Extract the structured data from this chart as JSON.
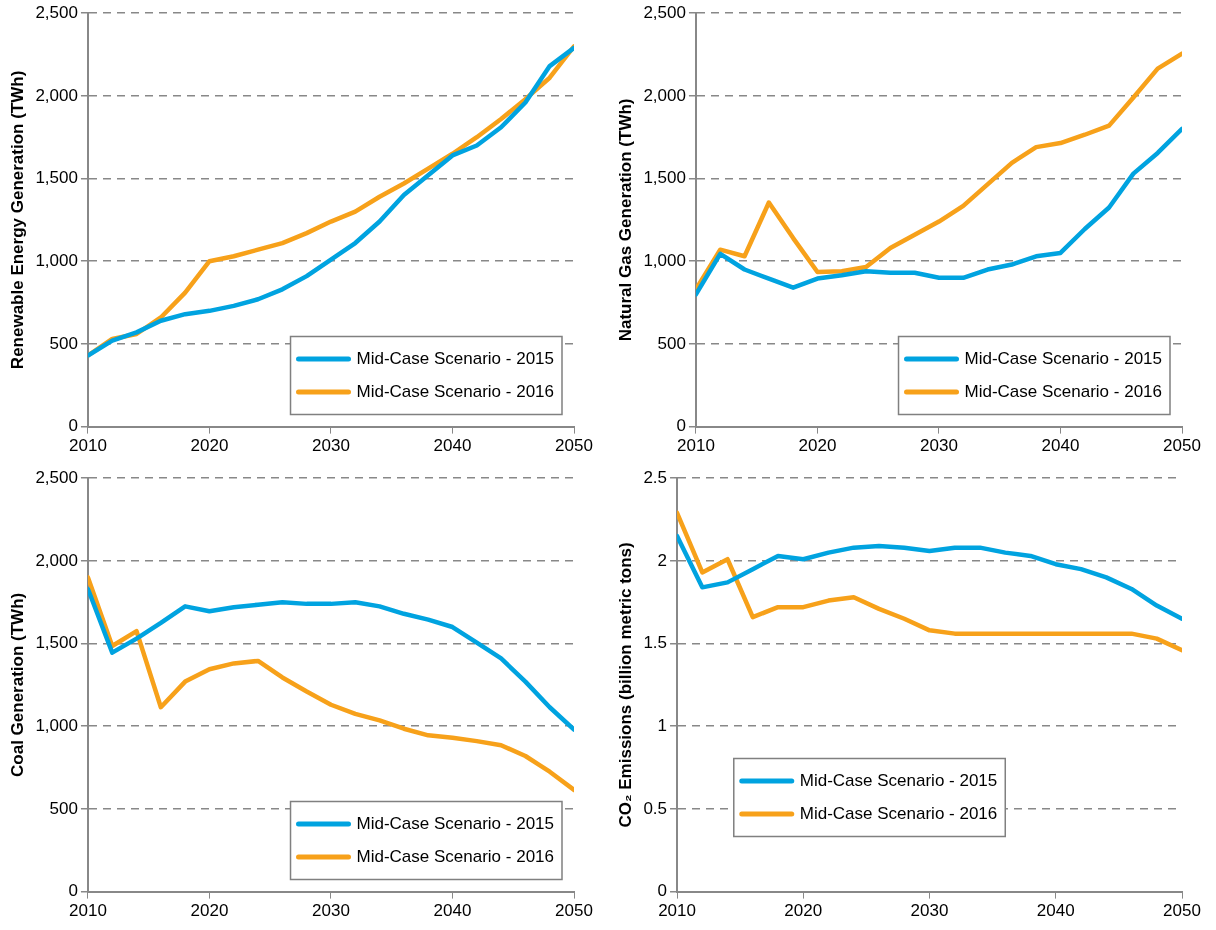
{
  "chart_data": [
    {
      "type": "line",
      "ylabel": "Renewable Energy Generation (TWh)",
      "x": [
        2010,
        2012,
        2014,
        2016,
        2018,
        2020,
        2022,
        2024,
        2026,
        2028,
        2030,
        2032,
        2034,
        2036,
        2038,
        2040,
        2042,
        2044,
        2046,
        2048,
        2050
      ],
      "xlim": [
        2010,
        2050
      ],
      "xticks": [
        2010,
        2020,
        2030,
        2040,
        2050
      ],
      "ylim": [
        0,
        2500
      ],
      "yticks": [
        0,
        500,
        {
          "value": 1000,
          "label": "1,000"
        },
        {
          "value": 1500,
          "label": "1,500"
        },
        {
          "value": 2000,
          "label": "2,000"
        },
        {
          "value": 2500,
          "label": "2,500"
        }
      ],
      "grid": "y",
      "legend": "bottom right",
      "line_style": "solid",
      "marker": "none",
      "series": [
        {
          "name": "Mid-Case Scenario - 2015",
          "color": "#00a3e0",
          "values": [
            430,
            520,
            570,
            640,
            680,
            700,
            730,
            770,
            830,
            910,
            1010,
            1110,
            1240,
            1400,
            1520,
            1640,
            1700,
            1810,
            1960,
            2180,
            2290
          ]
        },
        {
          "name": "Mid-Case Scenario - 2016",
          "color": "#f7a11a",
          "values": [
            430,
            530,
            560,
            660,
            810,
            1000,
            1030,
            1070,
            1110,
            1170,
            1240,
            1300,
            1390,
            1470,
            1560,
            1650,
            1750,
            1860,
            1980,
            2110,
            2300
          ]
        }
      ]
    },
    {
      "type": "line",
      "ylabel": "Natural Gas Generation (TWh)",
      "x": [
        2010,
        2012,
        2014,
        2016,
        2018,
        2020,
        2022,
        2024,
        2026,
        2028,
        2030,
        2032,
        2034,
        2036,
        2038,
        2040,
        2042,
        2044,
        2046,
        2048,
        2050
      ],
      "xlim": [
        2010,
        2050
      ],
      "xticks": [
        2010,
        2020,
        2030,
        2040,
        2050
      ],
      "ylim": [
        0,
        2500
      ],
      "yticks": [
        0,
        500,
        {
          "value": 1000,
          "label": "1,000"
        },
        {
          "value": 1500,
          "label": "1,500"
        },
        {
          "value": 2000,
          "label": "2,000"
        },
        {
          "value": 2500,
          "label": "2,500"
        }
      ],
      "grid": "y",
      "legend": "bottom right",
      "line_style": "solid",
      "marker": "none",
      "series": [
        {
          "name": "Mid-Case Scenario - 2015",
          "color": "#00a3e0",
          "values": [
            800,
            1045,
            950,
            895,
            840,
            895,
            915,
            940,
            930,
            930,
            900,
            900,
            950,
            980,
            1030,
            1050,
            1195,
            1325,
            1530,
            1655,
            1800
          ]
        },
        {
          "name": "Mid-Case Scenario - 2016",
          "color": "#f7a11a",
          "values": [
            830,
            1070,
            1030,
            1355,
            1140,
            935,
            940,
            965,
            1080,
            1160,
            1240,
            1335,
            1465,
            1595,
            1690,
            1715,
            1765,
            1820,
            1990,
            2165,
            2255
          ]
        }
      ]
    },
    {
      "type": "line",
      "ylabel": "Coal Generation (TWh)",
      "x": [
        2010,
        2012,
        2014,
        2016,
        2018,
        2020,
        2022,
        2024,
        2026,
        2028,
        2030,
        2032,
        2034,
        2036,
        2038,
        2040,
        2042,
        2044,
        2046,
        2048,
        2050
      ],
      "xlim": [
        2010,
        2050
      ],
      "xticks": [
        2010,
        2020,
        2030,
        2040,
        2050
      ],
      "ylim": [
        0,
        2500
      ],
      "yticks": [
        0,
        500,
        {
          "value": 1000,
          "label": "1,000"
        },
        {
          "value": 1500,
          "label": "1,500"
        },
        {
          "value": 2000,
          "label": "2,000"
        },
        {
          "value": 2500,
          "label": "2,500"
        }
      ],
      "grid": "y",
      "legend": "bottom right",
      "line_style": "solid",
      "marker": "none",
      "series": [
        {
          "name": "Mid-Case Scenario - 2015",
          "color": "#00a3e0",
          "values": [
            1830,
            1445,
            1530,
            1625,
            1725,
            1695,
            1720,
            1735,
            1750,
            1740,
            1740,
            1750,
            1725,
            1680,
            1645,
            1600,
            1505,
            1410,
            1270,
            1115,
            980
          ]
        },
        {
          "name": "Mid-Case Scenario - 2016",
          "color": "#f7a11a",
          "values": [
            1900,
            1485,
            1575,
            1115,
            1270,
            1345,
            1380,
            1395,
            1295,
            1210,
            1130,
            1075,
            1035,
            985,
            945,
            930,
            910,
            885,
            820,
            725,
            615
          ]
        }
      ]
    },
    {
      "type": "line",
      "ylabel": "CO₂ Emissions (billion metric tons)",
      "x": [
        2010,
        2012,
        2014,
        2016,
        2018,
        2020,
        2022,
        2024,
        2026,
        2028,
        2030,
        2032,
        2034,
        2036,
        2038,
        2040,
        2042,
        2044,
        2046,
        2048,
        2050
      ],
      "xlim": [
        2010,
        2050
      ],
      "xticks": [
        2010,
        2020,
        2030,
        2040,
        2050
      ],
      "ylim": [
        0,
        2.5
      ],
      "yticks": [
        0,
        0.5,
        1,
        1.5,
        2,
        2.5
      ],
      "grid": "y",
      "legend": "bottom",
      "line_style": "solid",
      "marker": "none",
      "series": [
        {
          "name": "Mid-Case Scenario - 2015",
          "color": "#00a3e0",
          "values": [
            2.15,
            1.84,
            1.87,
            1.95,
            2.03,
            2.01,
            2.05,
            2.08,
            2.09,
            2.08,
            2.06,
            2.08,
            2.08,
            2.05,
            2.03,
            1.98,
            1.95,
            1.9,
            1.83,
            1.73,
            1.65
          ]
        },
        {
          "name": "Mid-Case Scenario - 2016",
          "color": "#f7a11a",
          "values": [
            2.29,
            1.93,
            2.01,
            1.66,
            1.72,
            1.72,
            1.76,
            1.78,
            1.71,
            1.65,
            1.58,
            1.56,
            1.56,
            1.56,
            1.56,
            1.56,
            1.56,
            1.56,
            1.56,
            1.53,
            1.46
          ]
        }
      ]
    }
  ]
}
